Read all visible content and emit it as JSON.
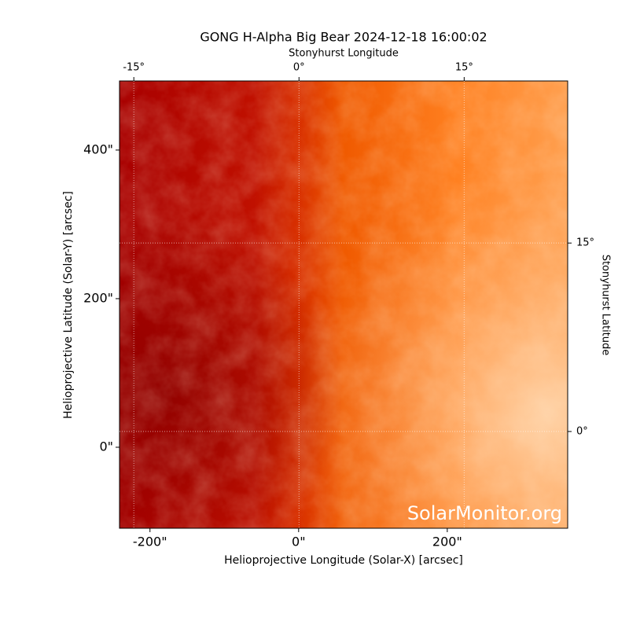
{
  "chart_data": {
    "type": "image",
    "title": "GONG H-Alpha Big Bear 2024-12-18 16:00:02",
    "x_label": "Helioprojective Longitude (Solar-X) [arcsec]",
    "y_label": "Helioprojective Latitude (Solar-Y) [arcsec]",
    "x2_label": "Stonyhurst Longitude",
    "y2_label": "Stonyhurst Latitude",
    "watermark": "SolarMonitor.org",
    "xlim": [
      -241,
      362
    ],
    "ylim": [
      -109,
      493
    ],
    "xticks": [
      {
        "value": -200,
        "label": "-200\""
      },
      {
        "value": 0,
        "label": "0\""
      },
      {
        "value": 200,
        "label": "200\""
      }
    ],
    "yticks": [
      {
        "value": 0,
        "label": "0\""
      },
      {
        "value": 200,
        "label": "200\""
      },
      {
        "value": 400,
        "label": "400\""
      }
    ],
    "x2lim": [
      -16.3,
      24.4
    ],
    "x2ticks": [
      {
        "value": -15,
        "label": "-15°"
      },
      {
        "value": 0,
        "label": "0°"
      },
      {
        "value": 15,
        "label": "15°"
      }
    ],
    "y2lim": [
      -7.7,
      27.9
    ],
    "y2ticks": [
      {
        "value": 0,
        "label": "0°"
      },
      {
        "value": 15,
        "label": "15°"
      }
    ],
    "grid": true
  }
}
